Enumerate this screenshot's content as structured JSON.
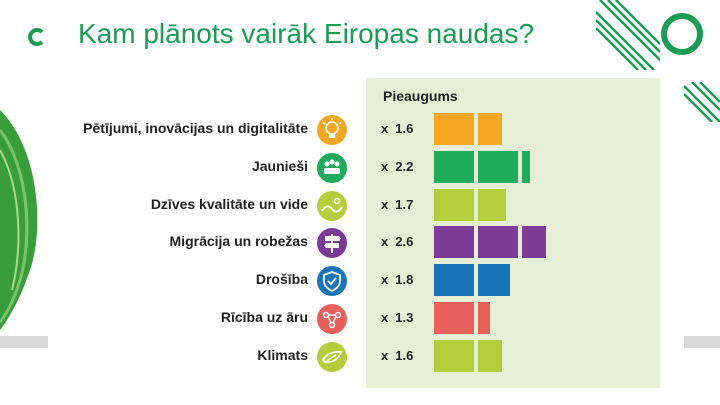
{
  "title": "Kam plānots vairāk Eiropas naudas?",
  "chart_data": {
    "type": "bar",
    "header": "Pieaugums",
    "multiplier_prefix": "x",
    "categories": [
      {
        "label": "Pētījumi, inovācijas un digitalitāte",
        "icon": "lightbulb-icon",
        "color": "#f5a623",
        "value": 1.6,
        "value_text": "1.6"
      },
      {
        "label": "Jaunieši",
        "icon": "people-icon",
        "color": "#1fab5b",
        "value": 2.2,
        "value_text": "2.2"
      },
      {
        "label": "Dzīves kvalitāte un vide",
        "icon": "landscape-icon",
        "color": "#b5cc3b",
        "value": 1.7,
        "value_text": "1.7"
      },
      {
        "label": "Migrācija un robežas",
        "icon": "signpost-icon",
        "color": "#7b3a96",
        "value": 2.6,
        "value_text": "2.6"
      },
      {
        "label": "Drošība",
        "icon": "shield-icon",
        "color": "#1a74b8",
        "value": 1.8,
        "value_text": "1.8"
      },
      {
        "label": "Rīcība uz āru",
        "icon": "network-icon",
        "color": "#e8605c",
        "value": 1.3,
        "value_text": "1.3"
      },
      {
        "label": "Klimats",
        "icon": "leaf-icon",
        "color": "#b5cc3b",
        "value": 1.6,
        "value_text": "1.6"
      }
    ]
  },
  "decor": {
    "accent": "#1a9c55",
    "panel_color": "#e6efd6"
  }
}
